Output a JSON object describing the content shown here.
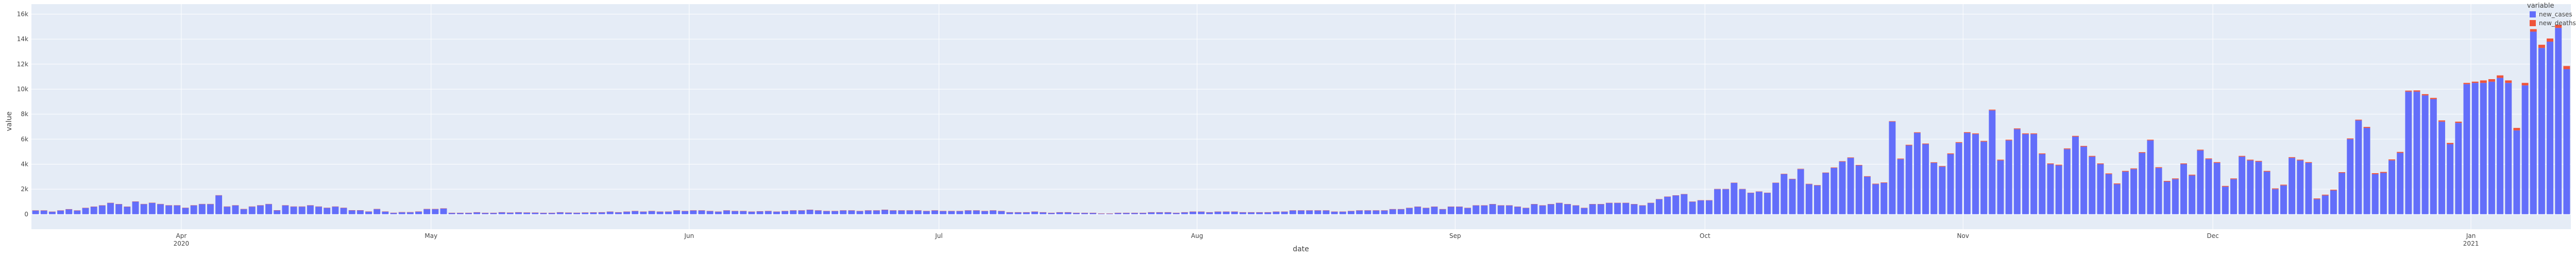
{
  "chart_data": {
    "type": "bar",
    "stacked": true,
    "xlabel": "date",
    "ylabel": "value",
    "x_start": "2020-03-14",
    "x_ticks": [
      {
        "date": "2020-04-01",
        "label": "Apr",
        "sublabel": "2020"
      },
      {
        "date": "2020-05-01",
        "label": "May",
        "sublabel": ""
      },
      {
        "date": "2020-06-01",
        "label": "Jun",
        "sublabel": ""
      },
      {
        "date": "2020-07-01",
        "label": "Jul",
        "sublabel": ""
      },
      {
        "date": "2020-08-01",
        "label": "Aug",
        "sublabel": ""
      },
      {
        "date": "2020-09-01",
        "label": "Sep",
        "sublabel": ""
      },
      {
        "date": "2020-10-01",
        "label": "Oct",
        "sublabel": ""
      },
      {
        "date": "2020-11-01",
        "label": "Nov",
        "sublabel": ""
      },
      {
        "date": "2020-12-01",
        "label": "Dec",
        "sublabel": ""
      },
      {
        "date": "2021-01-01",
        "label": "Jan",
        "sublabel": "2021"
      }
    ],
    "y_ticks": [
      0,
      2000,
      4000,
      6000,
      8000,
      10000,
      12000,
      14000,
      16000
    ],
    "y_tick_labels": [
      "0",
      "2k",
      "4k",
      "6k",
      "8k",
      "10k",
      "12k",
      "14k",
      "16k"
    ],
    "ylim": [
      -1200,
      16800
    ],
    "legend": {
      "title": "variable",
      "placement": "top-right"
    },
    "series": [
      {
        "name": "new_cases",
        "color": "#636efa",
        "values": [
          300,
          300,
          200,
          300,
          400,
          300,
          500,
          600,
          700,
          900,
          800,
          600,
          1000,
          800,
          900,
          800,
          700,
          700,
          500,
          700,
          800,
          800,
          1500,
          600,
          700,
          400,
          600,
          700,
          800,
          300,
          700,
          600,
          600,
          700,
          600,
          500,
          600,
          500,
          300,
          300,
          200,
          400,
          200,
          100,
          150,
          150,
          200,
          400,
          400,
          450,
          100,
          100,
          100,
          150,
          100,
          100,
          150,
          120,
          150,
          130,
          120,
          100,
          100,
          150,
          120,
          110,
          130,
          140,
          150,
          200,
          150,
          200,
          250,
          200,
          250,
          200,
          200,
          300,
          250,
          300,
          300,
          250,
          200,
          300,
          250,
          250,
          200,
          230,
          250,
          200,
          250,
          300,
          300,
          350,
          300,
          250,
          250,
          300,
          300,
          250,
          300,
          300,
          350,
          300,
          300,
          300,
          300,
          250,
          300,
          250,
          250,
          250,
          300,
          300,
          250,
          300,
          250,
          150,
          150,
          150,
          200,
          150,
          100,
          150,
          150,
          100,
          100,
          100,
          50,
          50,
          100,
          100,
          100,
          100,
          150,
          150,
          150,
          100,
          150,
          200,
          200,
          150,
          200,
          200,
          200,
          150,
          150,
          150,
          150,
          200,
          200,
          300,
          300,
          300,
          300,
          300,
          200,
          200,
          250,
          300,
          300,
          300,
          300,
          400,
          400,
          500,
          600,
          500,
          600,
          400,
          600,
          600,
          500,
          700,
          700,
          800,
          700,
          700,
          600,
          500,
          800,
          700,
          800,
          900,
          800,
          700,
          500,
          800,
          800,
          900,
          900,
          900,
          800,
          700,
          900,
          1200,
          1400,
          1500,
          1600,
          1000,
          1100,
          1100,
          2000,
          2000,
          2500,
          2000,
          1700,
          1800,
          1700,
          2500,
          3200,
          2800,
          3600,
          2400,
          2300,
          3300,
          3700,
          4200,
          4500,
          3900,
          3000,
          2400,
          2500,
          7400,
          4400,
          5500,
          6500,
          5600,
          4100,
          3800,
          4800,
          5700,
          6500,
          6400,
          5800,
          8300,
          4300,
          5900,
          6800,
          6400,
          6400,
          4800,
          4000,
          3900,
          5200,
          6200,
          5400,
          4600,
          4000,
          3200,
          2400,
          3400,
          3600,
          4900,
          5900,
          3700,
          2600,
          2800,
          4000,
          3100,
          5100,
          4400,
          4100,
          2200,
          2800,
          4600,
          4300,
          4200,
          3400,
          2000,
          2300,
          4500,
          4300,
          4100,
          1200,
          1500,
          1900,
          3300,
          6000,
          7500,
          6900,
          3200,
          3300,
          4300,
          4900,
          9800,
          9800,
          9500,
          9200,
          7400,
          5600,
          7300,
          10400,
          10500,
          10500,
          10600,
          10900,
          10500,
          6700,
          10300,
          14600,
          13300,
          13800,
          14900,
          11600
        ]
      },
      {
        "name": "new_deaths",
        "color": "#ef553b",
        "values": [
          5,
          5,
          5,
          5,
          5,
          5,
          10,
          10,
          10,
          10,
          10,
          10,
          20,
          20,
          20,
          20,
          20,
          20,
          20,
          20,
          20,
          20,
          20,
          20,
          20,
          20,
          20,
          20,
          20,
          20,
          20,
          20,
          20,
          20,
          20,
          20,
          20,
          20,
          20,
          20,
          20,
          20,
          20,
          20,
          20,
          20,
          20,
          20,
          20,
          20,
          10,
          10,
          10,
          10,
          10,
          10,
          10,
          10,
          10,
          10,
          10,
          10,
          10,
          10,
          10,
          10,
          10,
          10,
          10,
          10,
          10,
          10,
          10,
          10,
          10,
          10,
          10,
          10,
          10,
          10,
          10,
          10,
          10,
          10,
          10,
          10,
          10,
          10,
          10,
          10,
          10,
          10,
          10,
          10,
          10,
          10,
          10,
          10,
          10,
          10,
          10,
          10,
          10,
          10,
          10,
          10,
          10,
          10,
          10,
          10,
          10,
          10,
          10,
          10,
          10,
          10,
          10,
          10,
          10,
          10,
          10,
          10,
          10,
          10,
          10,
          10,
          10,
          10,
          10,
          10,
          10,
          10,
          10,
          10,
          10,
          10,
          10,
          10,
          10,
          10,
          10,
          10,
          10,
          10,
          10,
          10,
          10,
          10,
          10,
          10,
          10,
          10,
          10,
          10,
          10,
          10,
          10,
          10,
          10,
          10,
          10,
          10,
          10,
          10,
          10,
          10,
          10,
          10,
          10,
          10,
          10,
          10,
          10,
          10,
          10,
          10,
          10,
          10,
          10,
          10,
          10,
          10,
          10,
          10,
          10,
          10,
          10,
          10,
          10,
          10,
          10,
          10,
          10,
          10,
          10,
          10,
          10,
          10,
          10,
          10,
          20,
          20,
          20,
          20,
          20,
          20,
          20,
          20,
          20,
          20,
          30,
          30,
          30,
          30,
          30,
          30,
          40,
          40,
          40,
          40,
          40,
          40,
          40,
          40,
          50,
          50,
          50,
          50,
          50,
          50,
          60,
          60,
          60,
          60,
          60,
          60,
          60,
          60,
          60,
          60,
          60,
          60,
          60,
          60,
          60,
          60,
          60,
          60,
          60,
          60,
          60,
          60,
          60,
          60,
          60,
          60,
          60,
          60,
          60,
          60,
          60,
          60,
          60,
          60,
          60,
          60,
          60,
          60,
          60,
          60,
          60,
          60,
          60,
          60,
          60,
          60,
          60,
          60,
          60,
          60,
          80,
          80,
          80,
          80,
          80,
          80,
          100,
          100,
          100,
          100,
          100,
          100,
          100,
          100,
          200,
          200,
          200,
          200,
          200,
          200,
          200,
          250,
          250,
          250,
          250,
          250,
          250,
          300,
          300,
          300,
          350,
          350,
          350,
          350
        ]
      }
    ]
  }
}
